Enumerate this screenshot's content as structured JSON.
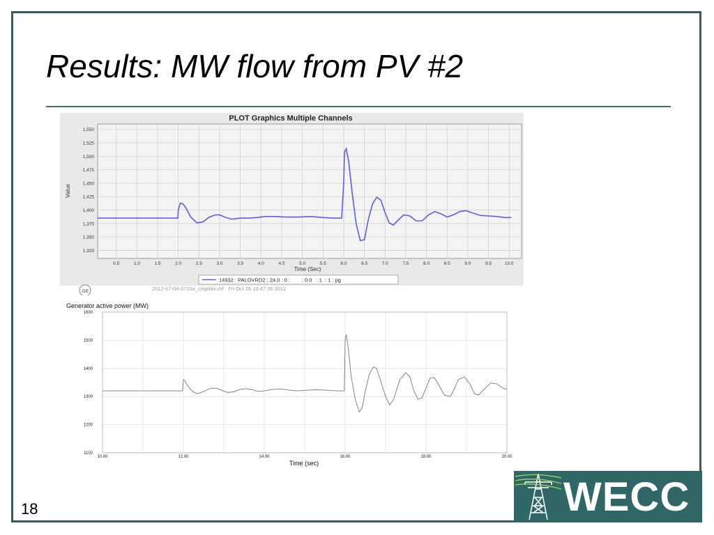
{
  "slide": {
    "title": "Results: MW flow from PV #2",
    "number": "18"
  },
  "logo": {
    "text": "WECC"
  },
  "chart_data": [
    {
      "type": "line",
      "title": "PLOT Graphics Multiple Channels",
      "xlabel": "Time (Sec)",
      "ylabel": "Value",
      "xlim": [
        0.05,
        10.3
      ],
      "ylim": [
        1310,
        1560
      ],
      "x_ticks": [
        "0.5",
        "1.0",
        "1.5",
        "2.0",
        "2.5",
        "3.0",
        "3.5",
        "4.0",
        "4.5",
        "5.0",
        "5.5",
        "6.0",
        "6.5",
        "7.0",
        "7.5",
        "8.0",
        "8.5",
        "9.0",
        "9.5",
        "10.0"
      ],
      "y_ticks": [
        "1,325",
        "1,350",
        "1,375",
        "1,400",
        "1,425",
        "1,450",
        "1,475",
        "1,500",
        "1,525",
        "1,550"
      ],
      "grid": true,
      "legend": "bottom-center",
      "series": [
        {
          "name": "14932 : PALOVRD2 : 24.0 : 0 :        : 0.0   : 1  : 1 : pg",
          "color": "#5b5bf0",
          "x": [
            0.05,
            1.0,
            1.5,
            1.99,
            2.0,
            2.05,
            2.12,
            2.2,
            2.3,
            2.45,
            2.6,
            2.75,
            2.9,
            3.0,
            3.15,
            3.3,
            3.5,
            3.7,
            3.9,
            4.1,
            4.3,
            4.6,
            4.9,
            5.2,
            5.5,
            5.75,
            5.95,
            6.0,
            6.02,
            6.06,
            6.12,
            6.2,
            6.3,
            6.4,
            6.5,
            6.6,
            6.7,
            6.8,
            6.9,
            7.0,
            7.1,
            7.2,
            7.3,
            7.45,
            7.6,
            7.75,
            7.9,
            8.05,
            8.2,
            8.35,
            8.5,
            8.65,
            8.8,
            8.95,
            9.1,
            9.3,
            9.5,
            9.7,
            9.9,
            10.05
          ],
          "values": [
            1385,
            1385,
            1385,
            1385,
            1400,
            1413,
            1411,
            1402,
            1387,
            1376,
            1378,
            1387,
            1391,
            1391,
            1386,
            1383,
            1385,
            1385,
            1386,
            1388,
            1388,
            1387,
            1387,
            1388,
            1386,
            1385,
            1385,
            1450,
            1508,
            1514,
            1490,
            1435,
            1375,
            1343,
            1345,
            1384,
            1412,
            1424,
            1418,
            1395,
            1376,
            1372,
            1380,
            1391,
            1389,
            1380,
            1380,
            1391,
            1397,
            1393,
            1387,
            1391,
            1397,
            1399,
            1395,
            1390,
            1389,
            1388,
            1386,
            1386
          ]
        }
      ]
    },
    {
      "type": "line",
      "title": "Generator active power (MW)",
      "xlabel": "Time (sec)",
      "ylabel": "",
      "xlim": [
        10,
        20
      ],
      "ylim": [
        1100,
        1600
      ],
      "x_ticks": [
        "10.00",
        "12.00",
        "14.00",
        "16.00",
        "18.00",
        "20.00"
      ],
      "y_ticks": [
        "1100",
        "1200",
        "1300",
        "1400",
        "1500",
        "1600"
      ],
      "grid": true,
      "series": [
        {
          "color": "#777777",
          "x": [
            10.0,
            11.0,
            11.98,
            12.0,
            12.04,
            12.08,
            12.15,
            12.25,
            12.35,
            12.5,
            12.65,
            12.8,
            12.95,
            13.1,
            13.25,
            13.4,
            13.55,
            13.7,
            13.85,
            14.0,
            14.2,
            14.4,
            14.6,
            14.8,
            15.0,
            15.3,
            15.6,
            15.8,
            15.98,
            16.0,
            16.03,
            16.08,
            16.15,
            16.25,
            16.35,
            16.42,
            16.5,
            16.6,
            16.7,
            16.78,
            16.9,
            17.0,
            17.1,
            17.2,
            17.35,
            17.5,
            17.6,
            17.7,
            17.8,
            17.9,
            18.0,
            18.1,
            18.2,
            18.3,
            18.45,
            18.6,
            18.7,
            18.8,
            18.95,
            19.1,
            19.2,
            19.3,
            19.45,
            19.6,
            19.75,
            19.9,
            20.0
          ],
          "values": [
            1320,
            1320,
            1320,
            1360,
            1355,
            1345,
            1330,
            1315,
            1310,
            1318,
            1328,
            1330,
            1322,
            1314,
            1317,
            1325,
            1328,
            1324,
            1318,
            1320,
            1325,
            1327,
            1323,
            1320,
            1322,
            1324,
            1322,
            1320,
            1320,
            1500,
            1520,
            1470,
            1370,
            1290,
            1245,
            1260,
            1320,
            1380,
            1405,
            1400,
            1345,
            1300,
            1270,
            1290,
            1360,
            1385,
            1370,
            1320,
            1290,
            1295,
            1330,
            1365,
            1368,
            1345,
            1305,
            1300,
            1328,
            1360,
            1370,
            1340,
            1310,
            1305,
            1328,
            1348,
            1345,
            1330,
            1325
          ]
        }
      ]
    }
  ],
  "plot_footer": {
    "ge_logo": "GE",
    "file_info": "2012-07-04-0720a_cmpldw.chf   Fri Oct 26 10:47:36 2012"
  }
}
